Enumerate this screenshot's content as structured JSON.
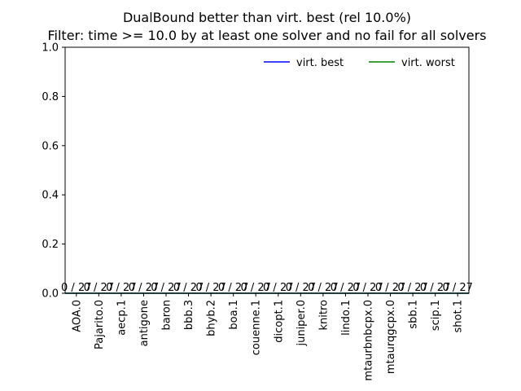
{
  "chart_data": {
    "type": "bar",
    "title": "DualBound better than virt. best (rel 10.0%)",
    "subtitle": "Filter: time >= 10.0 by at least one solver and no fail for all solvers",
    "xlabel": "",
    "ylabel": "",
    "ylim": [
      0,
      1.0
    ],
    "yticks": [
      "0.0",
      "0.2",
      "0.4",
      "0.6",
      "0.8",
      "1.0"
    ],
    "categories": [
      "AOA.0",
      "Pajarito.0",
      "aecp.1",
      "antigone",
      "baron",
      "bbb.3",
      "bhyb.2",
      "boa.1",
      "couenne.1",
      "dicopt.1",
      "juniper.0",
      "knitro",
      "lindo.1",
      "mtaurbnbcpx.0",
      "mtaurqgcpx.0",
      "sbb.1",
      "scip.1",
      "shot.1"
    ],
    "values": [
      0,
      0,
      0,
      0,
      0,
      0,
      0,
      0,
      0,
      0,
      0,
      0,
      0,
      0,
      0,
      0,
      0,
      0
    ],
    "bar_labels": [
      "0 / 27",
      "0 / 27",
      "0 / 27",
      "0 / 27",
      "0 / 27",
      "0 / 27",
      "0 / 27",
      "0 / 27",
      "0 / 27",
      "0 / 27",
      "0 / 27",
      "0 / 27",
      "0 / 27",
      "0 / 27",
      "0 / 27",
      "0 / 27",
      "0 / 27",
      "0 / 27"
    ],
    "series": [
      {
        "name": "virt. best",
        "color": "#0000ff",
        "value": 0
      },
      {
        "name": "virt. worst",
        "color": "#008000",
        "value": 0
      }
    ],
    "legend_position": "top-right",
    "grid": false
  }
}
